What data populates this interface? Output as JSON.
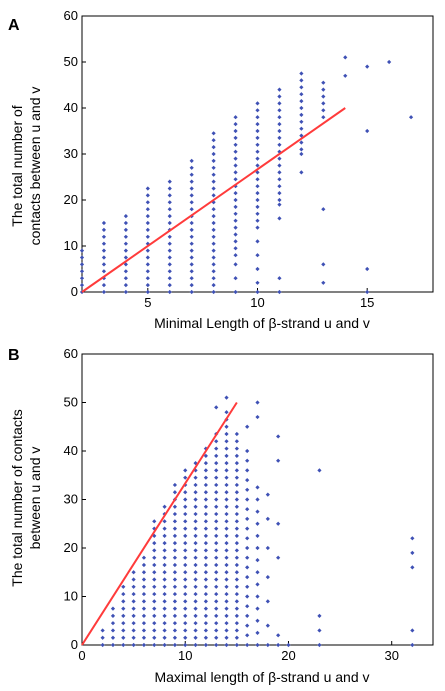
{
  "chart_data": [
    {
      "type": "scatter",
      "panel_label": "A",
      "xlabel": "Minimal Length of β-strand u and v",
      "ylabel_lines": [
        "The total number of",
        "contacts between u and v"
      ],
      "xlim": [
        2,
        18
      ],
      "ylim": [
        0,
        60
      ],
      "xticks": [
        5,
        10,
        15
      ],
      "yticks": [
        0,
        10,
        20,
        30,
        40,
        50,
        60
      ],
      "point_color": "#3f51b5",
      "fit_color": "#ff3b3b",
      "fit_line": {
        "x": [
          2,
          14
        ],
        "y": [
          0,
          40
        ]
      },
      "columns": [
        {
          "x": 2,
          "ymin": 0,
          "ymax": 9,
          "step": 1.5
        },
        {
          "x": 3,
          "ymin": 0,
          "ymax": 15,
          "step": 1.5
        },
        {
          "x": 4,
          "ymin": 0,
          "ymax": 17,
          "step": 1.5
        },
        {
          "x": 5,
          "ymin": 0,
          "ymax": 23,
          "step": 1.5
        },
        {
          "x": 6,
          "ymin": 0,
          "ymax": 25,
          "step": 1.5
        },
        {
          "x": 7,
          "ymin": 0,
          "ymax": 29,
          "step": 1.5
        },
        {
          "x": 8,
          "ymin": 0,
          "ymax": 35,
          "step": 1.5
        },
        {
          "x": 9,
          "ymin": 8,
          "ymax": 39,
          "step": 1.5
        },
        {
          "x": 10,
          "ymin": 14,
          "ymax": 42,
          "step": 1.5
        },
        {
          "x": 11,
          "ymin": 20,
          "ymax": 44,
          "step": 1.5
        },
        {
          "x": 12,
          "ymin": 31,
          "ymax": 48,
          "step": 1.5
        },
        {
          "x": 13,
          "ymin": 38,
          "ymax": 46,
          "step": 1.5
        }
      ],
      "extra_points": [
        [
          9,
          0
        ],
        [
          9,
          3
        ],
        [
          9,
          6
        ],
        [
          10,
          0
        ],
        [
          10,
          2
        ],
        [
          10,
          5
        ],
        [
          10,
          8
        ],
        [
          10,
          11
        ],
        [
          11,
          0
        ],
        [
          11,
          3
        ],
        [
          11,
          16
        ],
        [
          11,
          19
        ],
        [
          12,
          26
        ],
        [
          12,
          30
        ],
        [
          13,
          2
        ],
        [
          13,
          6
        ],
        [
          13,
          18
        ],
        [
          14,
          47
        ],
        [
          14,
          51
        ],
        [
          15,
          0
        ],
        [
          15,
          5
        ],
        [
          15,
          35
        ],
        [
          15,
          49
        ],
        [
          16,
          50
        ],
        [
          17,
          38
        ]
      ]
    },
    {
      "type": "scatter",
      "panel_label": "B",
      "xlabel": "Maximal length of β-strand u and v",
      "ylabel_lines": [
        "The total number of contacts",
        "between u and v"
      ],
      "xlim": [
        0,
        34
      ],
      "ylim": [
        0,
        60
      ],
      "xticks": [
        0,
        10,
        20,
        30
      ],
      "yticks": [
        0,
        10,
        20,
        30,
        40,
        50,
        60
      ],
      "point_color": "#3f51b5",
      "fit_color": "#ff3b3b",
      "fit_line": {
        "x": [
          0,
          15
        ],
        "y": [
          0,
          50
        ]
      },
      "columns": [
        {
          "x": 2,
          "ymin": 0,
          "ymax": 4,
          "step": 1.5
        },
        {
          "x": 3,
          "ymin": 0,
          "ymax": 8,
          "step": 1.5
        },
        {
          "x": 4,
          "ymin": 0,
          "ymax": 12,
          "step": 1.5
        },
        {
          "x": 5,
          "ymin": 0,
          "ymax": 15,
          "step": 1.5
        },
        {
          "x": 6,
          "ymin": 0,
          "ymax": 19,
          "step": 1.5
        },
        {
          "x": 7,
          "ymin": 0,
          "ymax": 26,
          "step": 1.5
        },
        {
          "x": 8,
          "ymin": 0,
          "ymax": 29,
          "step": 1.5
        },
        {
          "x": 9,
          "ymin": 0,
          "ymax": 33,
          "step": 1.5
        },
        {
          "x": 10,
          "ymin": 0,
          "ymax": 36,
          "step": 1.5
        },
        {
          "x": 11,
          "ymin": 0,
          "ymax": 38,
          "step": 1.5
        },
        {
          "x": 12,
          "ymin": 0,
          "ymax": 41,
          "step": 1.5
        },
        {
          "x": 13,
          "ymin": 0,
          "ymax": 44,
          "step": 1.5
        },
        {
          "x": 14,
          "ymin": 0,
          "ymax": 48,
          "step": 1.5
        },
        {
          "x": 15,
          "ymin": 0,
          "ymax": 44,
          "step": 1.5
        },
        {
          "x": 16,
          "ymin": 0,
          "ymax": 40,
          "step": 2
        },
        {
          "x": 17,
          "ymin": 0,
          "ymax": 34,
          "step": 2.5
        }
      ],
      "extra_points": [
        [
          13,
          49
        ],
        [
          14,
          51
        ],
        [
          16,
          45
        ],
        [
          17,
          47
        ],
        [
          17,
          50
        ],
        [
          18,
          0
        ],
        [
          18,
          4
        ],
        [
          18,
          9
        ],
        [
          18,
          14
        ],
        [
          18,
          20
        ],
        [
          18,
          26
        ],
        [
          18,
          31
        ],
        [
          19,
          0
        ],
        [
          19,
          2
        ],
        [
          19,
          18
        ],
        [
          19,
          25
        ],
        [
          19,
          38
        ],
        [
          19,
          43
        ],
        [
          20,
          0
        ],
        [
          23,
          0
        ],
        [
          23,
          3
        ],
        [
          23,
          6
        ],
        [
          23,
          36
        ],
        [
          32,
          0
        ],
        [
          32,
          3
        ],
        [
          32,
          16
        ],
        [
          32,
          19
        ],
        [
          32,
          22
        ]
      ]
    }
  ]
}
